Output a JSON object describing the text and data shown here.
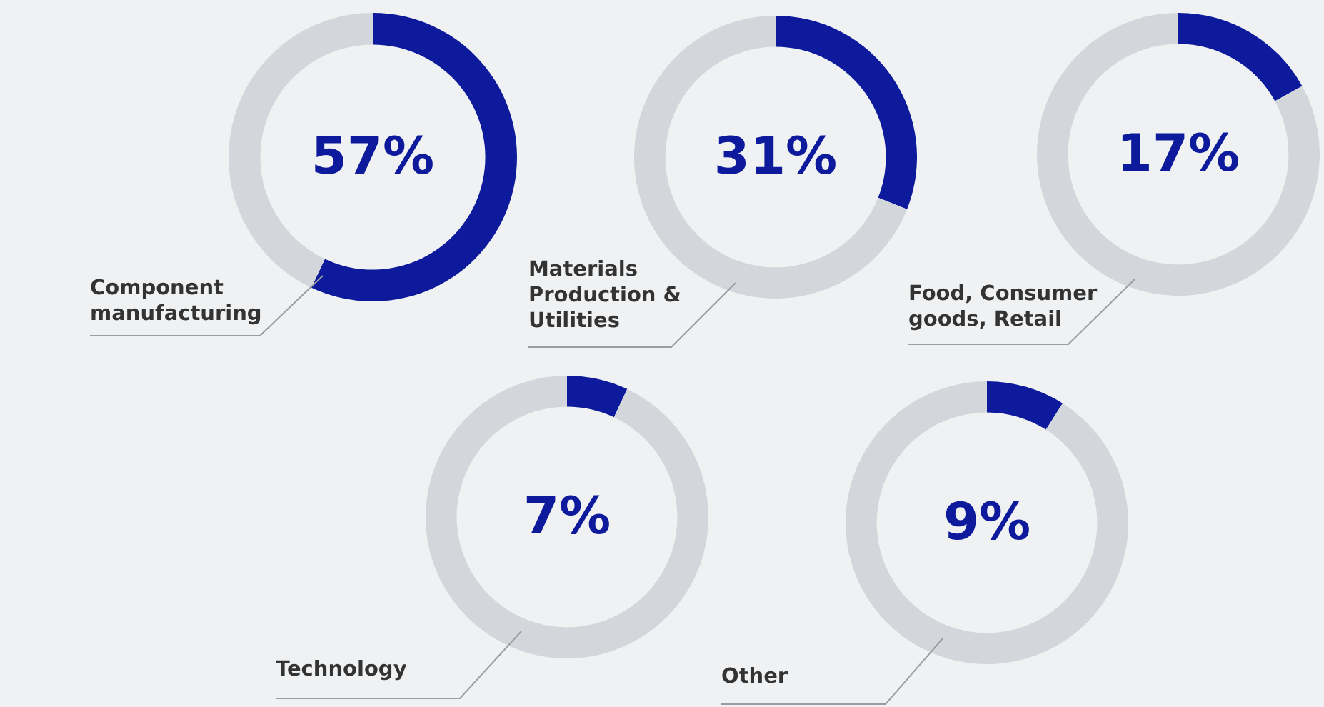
{
  "chart_data": [
    {
      "type": "donut",
      "title": "Component manufacturing",
      "categories": [
        null,
        null
      ],
      "values": [
        57,
        43
      ],
      "colors": [
        "#0c1a9b",
        "#d3d6da"
      ],
      "value_labels": [
        "57%",
        null
      ]
    },
    {
      "type": "donut",
      "title": "Materials Production & Utilities",
      "categories": [
        null,
        null
      ],
      "values": [
        31,
        69
      ],
      "colors": [
        "#0c1a9b",
        "#d3d6da"
      ],
      "value_labels": [
        "31%",
        null
      ]
    },
    {
      "type": "donut",
      "title": "Food, Consumer goods, Retail",
      "categories": [
        null,
        null
      ],
      "values": [
        17,
        83
      ],
      "colors": [
        "#0c1a9b",
        "#d3d6da"
      ],
      "value_labels": [
        "17%",
        null
      ]
    },
    {
      "type": "donut",
      "title": "Technology",
      "categories": [
        null,
        null
      ],
      "values": [
        7,
        93
      ],
      "colors": [
        "#0c1a9b",
        "#d3d6da"
      ],
      "value_labels": [
        "7%",
        null
      ]
    },
    {
      "type": "donut",
      "title": "Other",
      "categories": [
        null,
        null
      ],
      "values": [
        9,
        91
      ],
      "colors": [
        "#0c1a9b",
        "#d3d6da"
      ],
      "value_labels": [
        "9%",
        null
      ]
    }
  ]
}
